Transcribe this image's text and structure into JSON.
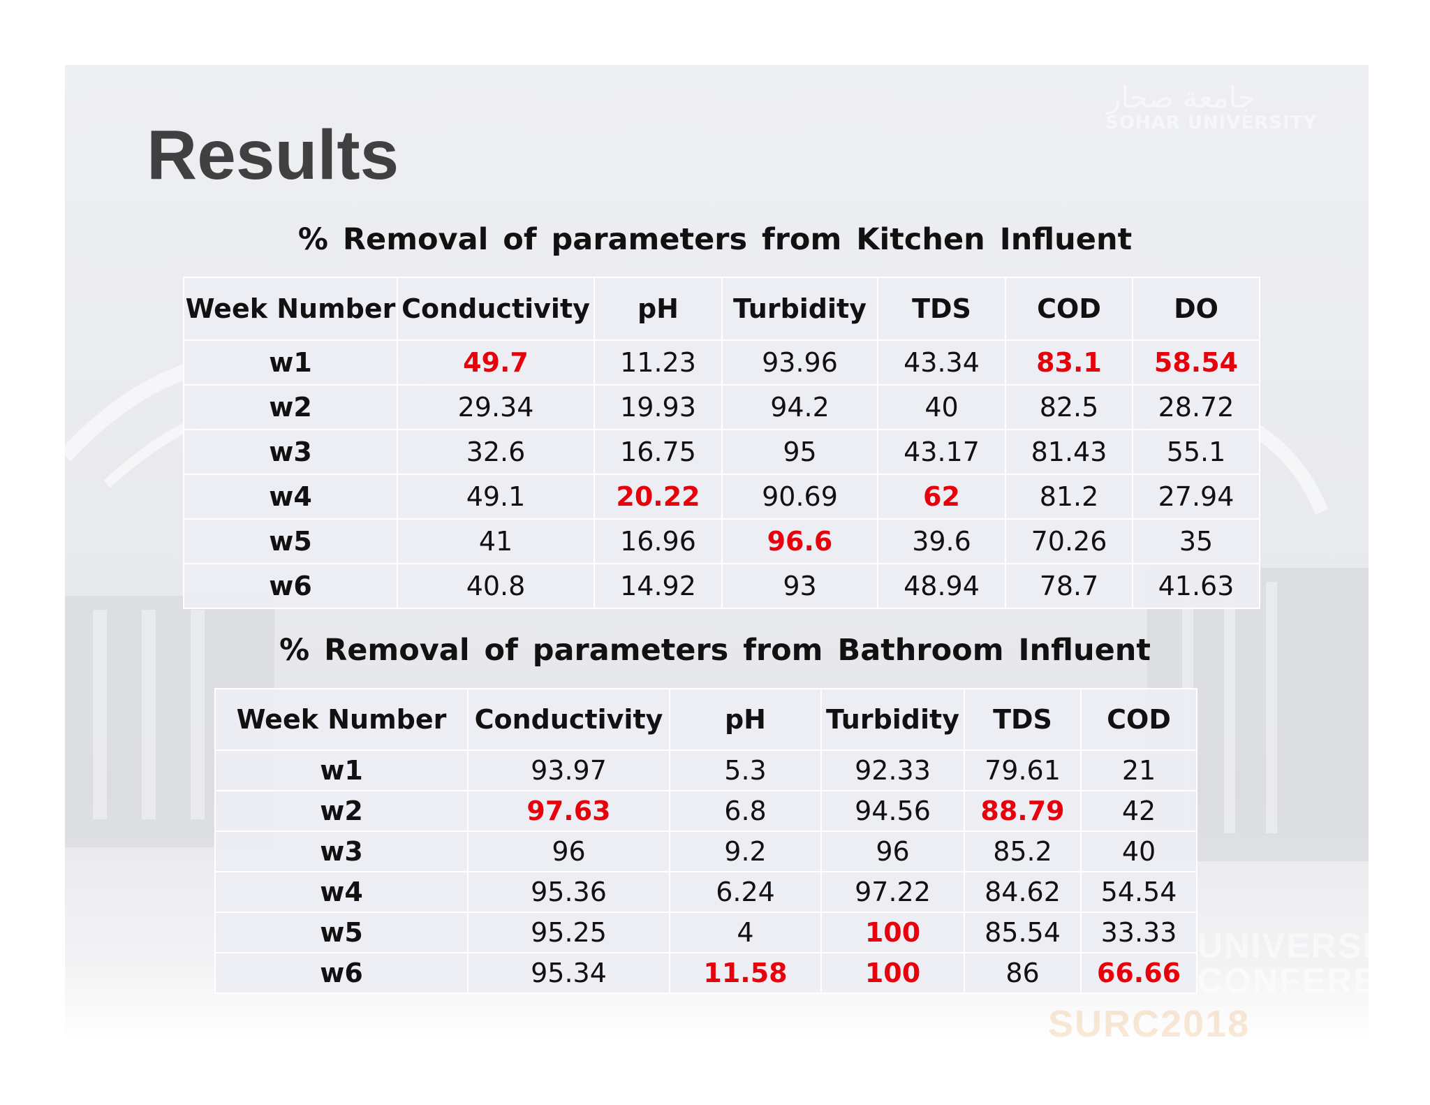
{
  "slide": {
    "title": "Results",
    "logo": {
      "arabic": "جامعة صحار",
      "latin": "SOHAR UNIVERSITY"
    },
    "watermark": {
      "line1": "UNIVERSITY",
      "line2": "CONFERENCE",
      "event": "SURC2018"
    }
  },
  "colors": {
    "highlight": "#e8000b",
    "title": "#404040",
    "text": "#111111"
  },
  "kitchen": {
    "caption": "% Removal of parameters from Kitchen Influent",
    "headers": [
      "Week Number",
      "Conductivity",
      "pH",
      "Turbidity",
      "TDS",
      "COD",
      "DO"
    ],
    "rows": [
      {
        "cells": [
          "w1",
          "49.7",
          "11.23",
          "93.96",
          "43.34",
          "83.1",
          "58.54"
        ],
        "highlight": [
          false,
          true,
          false,
          false,
          false,
          true,
          true
        ]
      },
      {
        "cells": [
          "w2",
          "29.34",
          "19.93",
          "94.2",
          "40",
          "82.5",
          "28.72"
        ],
        "highlight": [
          false,
          false,
          false,
          false,
          false,
          false,
          false
        ]
      },
      {
        "cells": [
          "w3",
          "32.6",
          "16.75",
          "95",
          "43.17",
          "81.43",
          "55.1"
        ],
        "highlight": [
          false,
          false,
          false,
          false,
          false,
          false,
          false
        ]
      },
      {
        "cells": [
          "w4",
          "49.1",
          "20.22",
          "90.69",
          "62",
          "81.2",
          "27.94"
        ],
        "highlight": [
          false,
          false,
          true,
          false,
          true,
          false,
          false
        ]
      },
      {
        "cells": [
          "w5",
          "41",
          "16.96",
          "96.6",
          "39.6",
          "70.26",
          "35"
        ],
        "highlight": [
          false,
          false,
          false,
          true,
          false,
          false,
          false
        ]
      },
      {
        "cells": [
          "w6",
          "40.8",
          "14.92",
          "93",
          "48.94",
          "78.7",
          "41.63"
        ],
        "highlight": [
          false,
          false,
          false,
          false,
          false,
          false,
          false
        ]
      }
    ]
  },
  "bathroom": {
    "caption": "% Removal of parameters from Bathroom Influent",
    "headers": [
      "Week Number",
      "Conductivity",
      "pH",
      "Turbidity",
      "TDS",
      "COD"
    ],
    "rows": [
      {
        "cells": [
          "w1",
          "93.97",
          "5.3",
          "92.33",
          "79.61",
          "21"
        ],
        "highlight": [
          false,
          false,
          false,
          false,
          false,
          false
        ]
      },
      {
        "cells": [
          "w2",
          "97.63",
          "6.8",
          "94.56",
          "88.79",
          "42"
        ],
        "highlight": [
          false,
          true,
          false,
          false,
          true,
          false
        ]
      },
      {
        "cells": [
          "w3",
          "96",
          "9.2",
          "96",
          "85.2",
          "40"
        ],
        "highlight": [
          false,
          false,
          false,
          false,
          false,
          false
        ]
      },
      {
        "cells": [
          "w4",
          "95.36",
          "6.24",
          "97.22",
          "84.62",
          "54.54"
        ],
        "highlight": [
          false,
          false,
          false,
          false,
          false,
          false
        ]
      },
      {
        "cells": [
          "w5",
          "95.25",
          "4",
          "100",
          "85.54",
          "33.33"
        ],
        "highlight": [
          false,
          false,
          false,
          true,
          false,
          false
        ]
      },
      {
        "cells": [
          "w6",
          "95.34",
          "11.58",
          "100",
          "86",
          "66.66"
        ],
        "highlight": [
          false,
          false,
          true,
          true,
          false,
          true
        ]
      }
    ]
  }
}
